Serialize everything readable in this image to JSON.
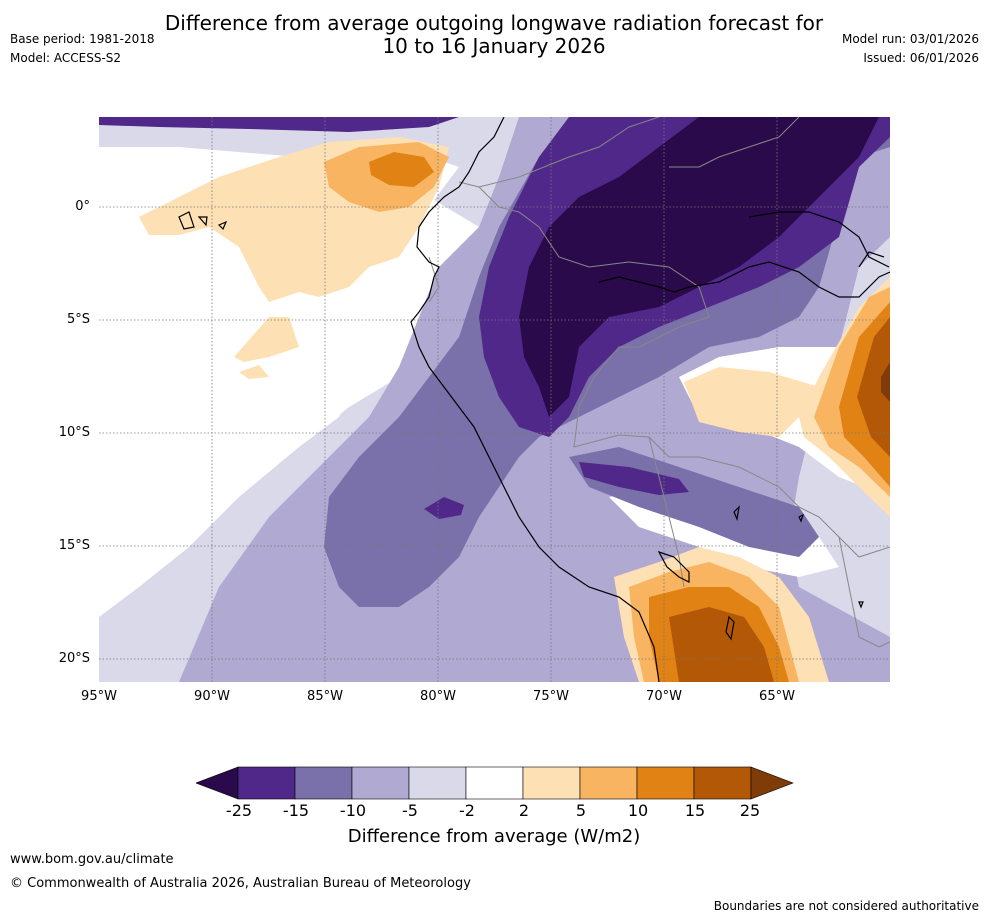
{
  "header": {
    "title_line1": "Difference from average outgoing longwave radiation forecast for",
    "title_line2": "10 to 16 January 2026",
    "base_period": "Base period: 1981-2018",
    "model": "Model: ACCESS-S2",
    "model_run": "Model run: 03/01/2026",
    "issued": "Issued: 06/01/2026"
  },
  "map": {
    "region": "Western South America / Eastern Pacific",
    "lat_labels": [
      "0°",
      "5°S",
      "10°S",
      "15°S",
      "20°S"
    ],
    "lon_labels": [
      "95°W",
      "90°W",
      "85°W",
      "80°W",
      "75°W",
      "70°W",
      "65°W"
    ]
  },
  "colorbar": {
    "label": "Difference from average (W/m2)",
    "ticks": [
      "-25",
      "-15",
      "-10",
      "-5",
      "-2",
      "2",
      "5",
      "10",
      "15",
      "25"
    ],
    "colors": [
      "#2a0a4a",
      "#50288a",
      "#7a70aa",
      "#b0a9d2",
      "#d9d9ea",
      "#ffffff",
      "#fde0b4",
      "#f8b460",
      "#e08214",
      "#b35806",
      "#7f3b08"
    ]
  },
  "footer": {
    "url": "www.bom.gov.au/climate",
    "copyright": "© Commonwealth of Australia 2026, Australian Bureau of Meteorology",
    "disclaimer": "Boundaries are not considered authoritative"
  }
}
